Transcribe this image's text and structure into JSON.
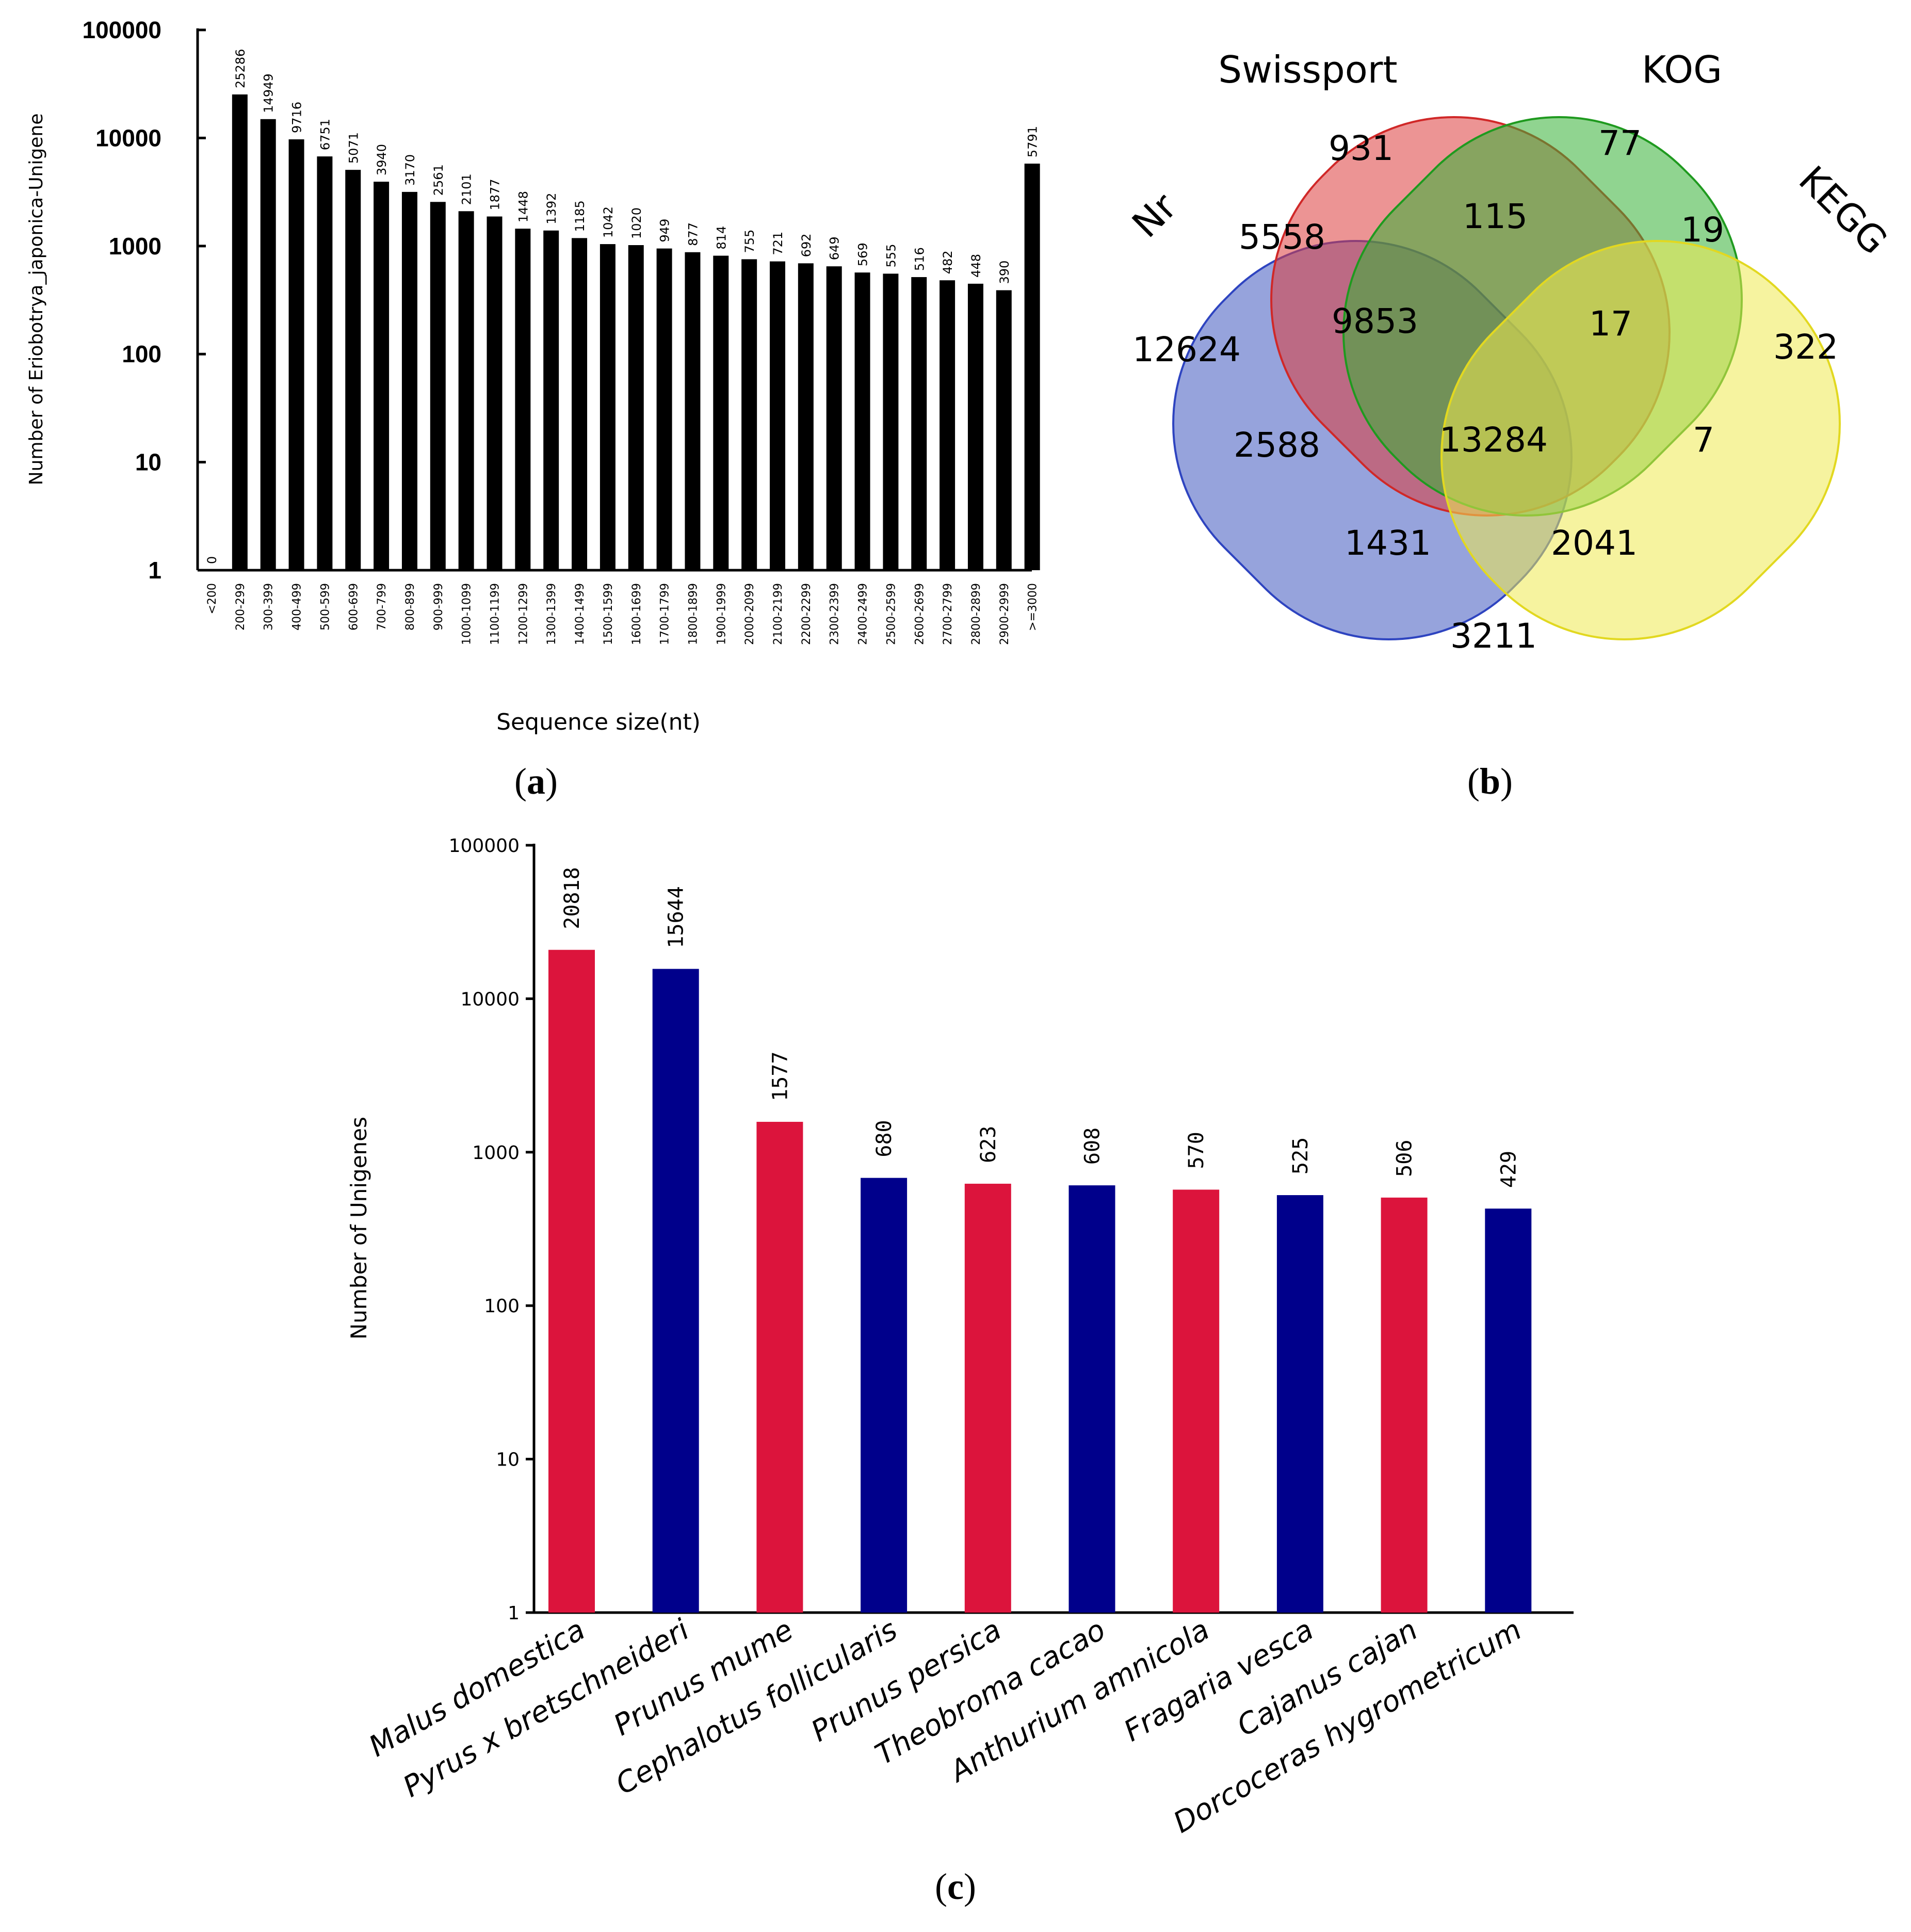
{
  "panels": {
    "a": "a",
    "b": "b",
    "c": "c"
  },
  "chart_data": [
    {
      "id": "a",
      "type": "bar",
      "scale": "log",
      "title": "",
      "xlabel": "Sequence size(nt)",
      "ylabel": "Number of Eriobotrya_japonica-Unigene",
      "ylim": [
        1,
        100000
      ],
      "yticks": [
        "1",
        "10",
        "100",
        "1000",
        "10000",
        "100000"
      ],
      "categories": [
        "<200",
        "200-299",
        "300-399",
        "400-499",
        "500-599",
        "600-699",
        "700-799",
        "800-899",
        "900-999",
        "1000-1099",
        "1100-1199",
        "1200-1299",
        "1300-1399",
        "1400-1499",
        "1500-1599",
        "1600-1699",
        "1700-1799",
        "1800-1899",
        "1900-1999",
        "2000-2099",
        "2100-2199",
        "2200-2299",
        "2300-2399",
        "2400-2499",
        "2500-2599",
        "2600-2699",
        "2700-2799",
        "2800-2899",
        "2900-2999",
        ">=3000"
      ],
      "values": [
        0,
        25286,
        14949,
        9716,
        6751,
        5071,
        3940,
        3170,
        2561,
        2101,
        1877,
        1448,
        1392,
        1185,
        1042,
        1020,
        949,
        877,
        814,
        755,
        721,
        692,
        649,
        569,
        555,
        516,
        482,
        448,
        390,
        5791
      ],
      "color": "#000000"
    },
    {
      "id": "b",
      "type": "venn",
      "sets": [
        "Nr",
        "Swissport",
        "KOG",
        "KEGG"
      ],
      "colors": {
        "Nr": "#3f57c0",
        "Swissport": "#dc3c3c",
        "KOG": "#34b034",
        "KEGG": "#eeea50"
      },
      "regions": [
        {
          "sets": [
            "Nr"
          ],
          "value": "12624"
        },
        {
          "sets": [
            "Swissport"
          ],
          "value": "931"
        },
        {
          "sets": [
            "KOG"
          ],
          "value": "77"
        },
        {
          "sets": [
            "KEGG"
          ],
          "value": "322"
        },
        {
          "sets": [
            "Nr",
            "Swissport"
          ],
          "value": "5558"
        },
        {
          "sets": [
            "Swissport",
            "KOG"
          ],
          "value": "115"
        },
        {
          "sets": [
            "KOG",
            "KEGG"
          ],
          "value": "19"
        },
        {
          "sets": [
            "Nr",
            "Swissport",
            "KOG"
          ],
          "value": "9853"
        },
        {
          "sets": [
            "Swissport",
            "KOG",
            "KEGG"
          ],
          "value": "17"
        },
        {
          "sets": [
            "Nr",
            "KOG"
          ],
          "value": "2588"
        },
        {
          "sets": [
            "Nr",
            "Swissport",
            "KOG",
            "KEGG"
          ],
          "value": "13284"
        },
        {
          "sets": [
            "Swissport",
            "KEGG"
          ],
          "value": "7"
        },
        {
          "sets": [
            "Nr",
            "KOG",
            "KEGG"
          ],
          "value": "1431"
        },
        {
          "sets": [
            "Nr",
            "Swissport",
            "KEGG"
          ],
          "value": "2041"
        },
        {
          "sets": [
            "Nr",
            "KEGG"
          ],
          "value": "3211"
        }
      ]
    },
    {
      "id": "c",
      "type": "bar",
      "scale": "log",
      "title": "",
      "xlabel": "",
      "ylabel": "Number of Unigenes",
      "ylim": [
        1,
        100000
      ],
      "yticks": [
        "1",
        "10",
        "100",
        "1000",
        "10000",
        "100000"
      ],
      "categories": [
        "Malus domestica",
        "Pyrus x bretschneideri",
        "Prunus mume",
        "Cephalotus follicularis",
        "Prunus persica",
        "Theobroma cacao",
        "Anthurium amnicola",
        "Fragaria vesca",
        "Cajanus cajan",
        "Dorcoceras hygrometricum"
      ],
      "values": [
        20818,
        15644,
        1577,
        680,
        623,
        608,
        570,
        525,
        506,
        429
      ],
      "colors": [
        "#dc143c",
        "#00008b",
        "#dc143c",
        "#00008b",
        "#dc143c",
        "#00008b",
        "#dc143c",
        "#00008b",
        "#dc143c",
        "#00008b"
      ]
    }
  ]
}
